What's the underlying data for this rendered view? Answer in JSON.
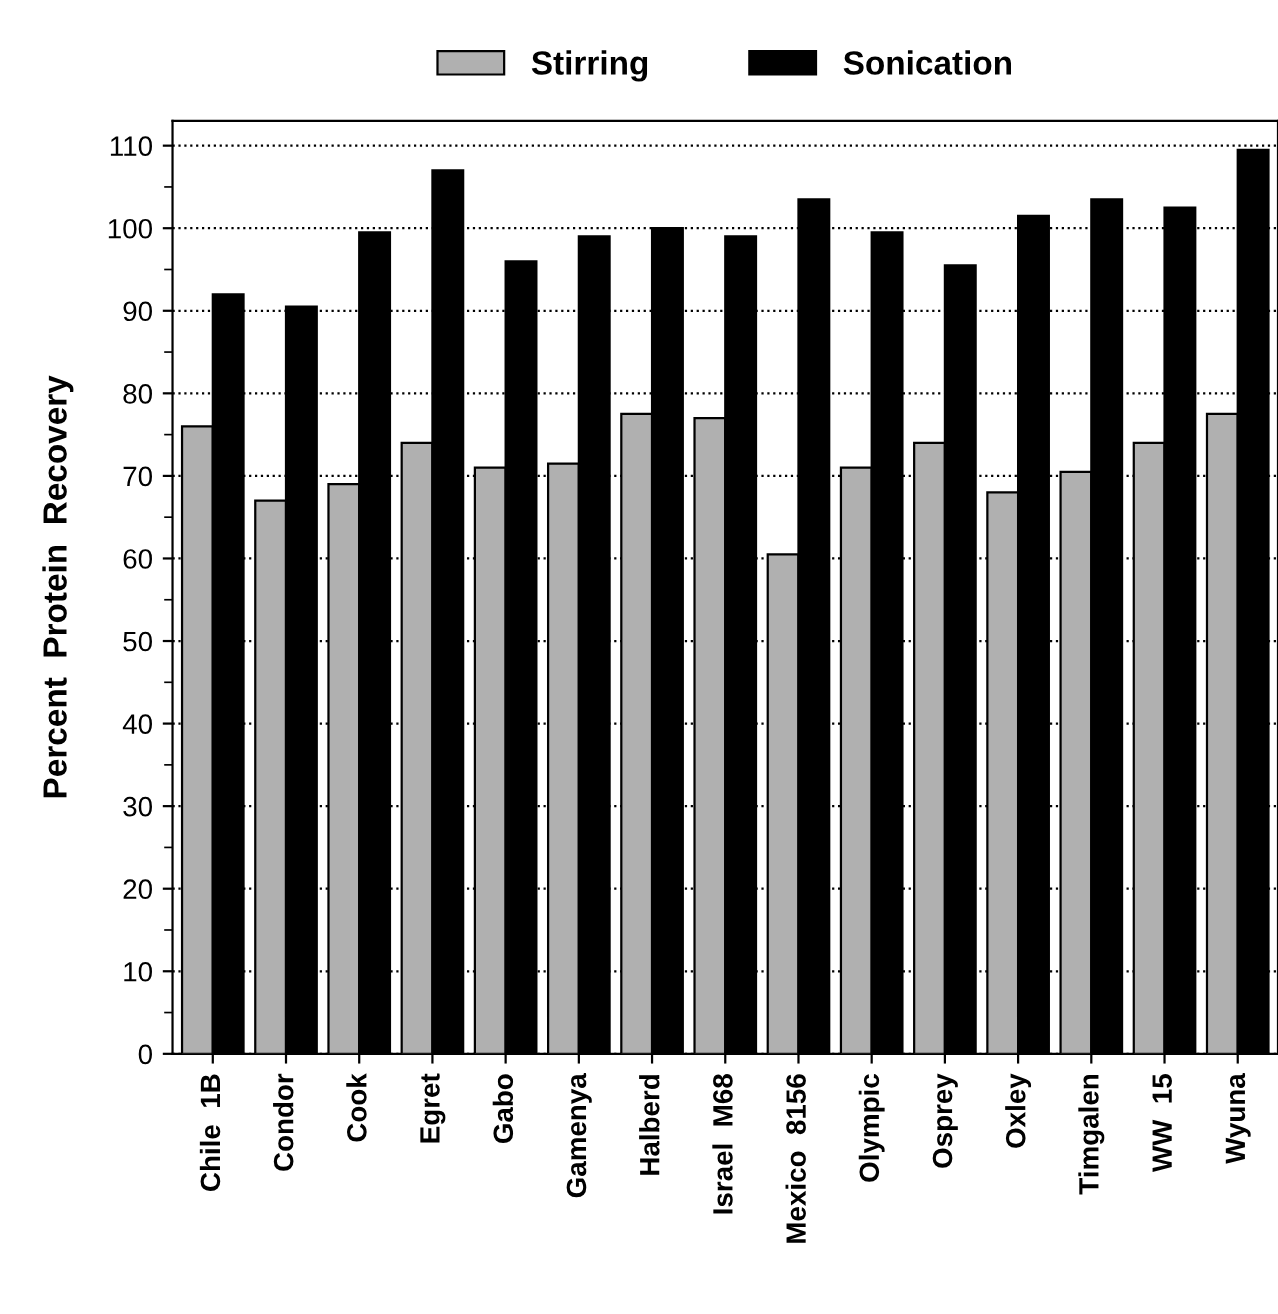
{
  "chart_data": {
    "type": "bar",
    "ylabel": "Percent  Protein  Recovery",
    "categories": [
      "Chile  1B",
      "Condor",
      "Cook",
      "Egret",
      "Gabo",
      "Gamenya",
      "Halberd",
      "Israel  M68",
      "Mexico  8156",
      "Olympic",
      "Osprey",
      "Oxley",
      "Timgalen",
      "WW  15",
      "Wyuna"
    ],
    "series": [
      {
        "name": "Stirring",
        "color": "#b0b0b0",
        "values": [
          76,
          67,
          69,
          74,
          71,
          71.5,
          77.5,
          77,
          60.5,
          71,
          74,
          68,
          70.5,
          74,
          77.5
        ]
      },
      {
        "name": "Sonication",
        "color": "#000000",
        "values": [
          92,
          90.5,
          99.5,
          107,
          96,
          99,
          100,
          99,
          103.5,
          99.5,
          95.5,
          101.5,
          103.5,
          102.5,
          109.5
        ]
      }
    ],
    "ylim": [
      0,
      113
    ],
    "yticks": [
      0,
      10,
      20,
      30,
      40,
      50,
      60,
      70,
      80,
      90,
      100,
      110
    ],
    "grid": "y",
    "legend": "top"
  }
}
